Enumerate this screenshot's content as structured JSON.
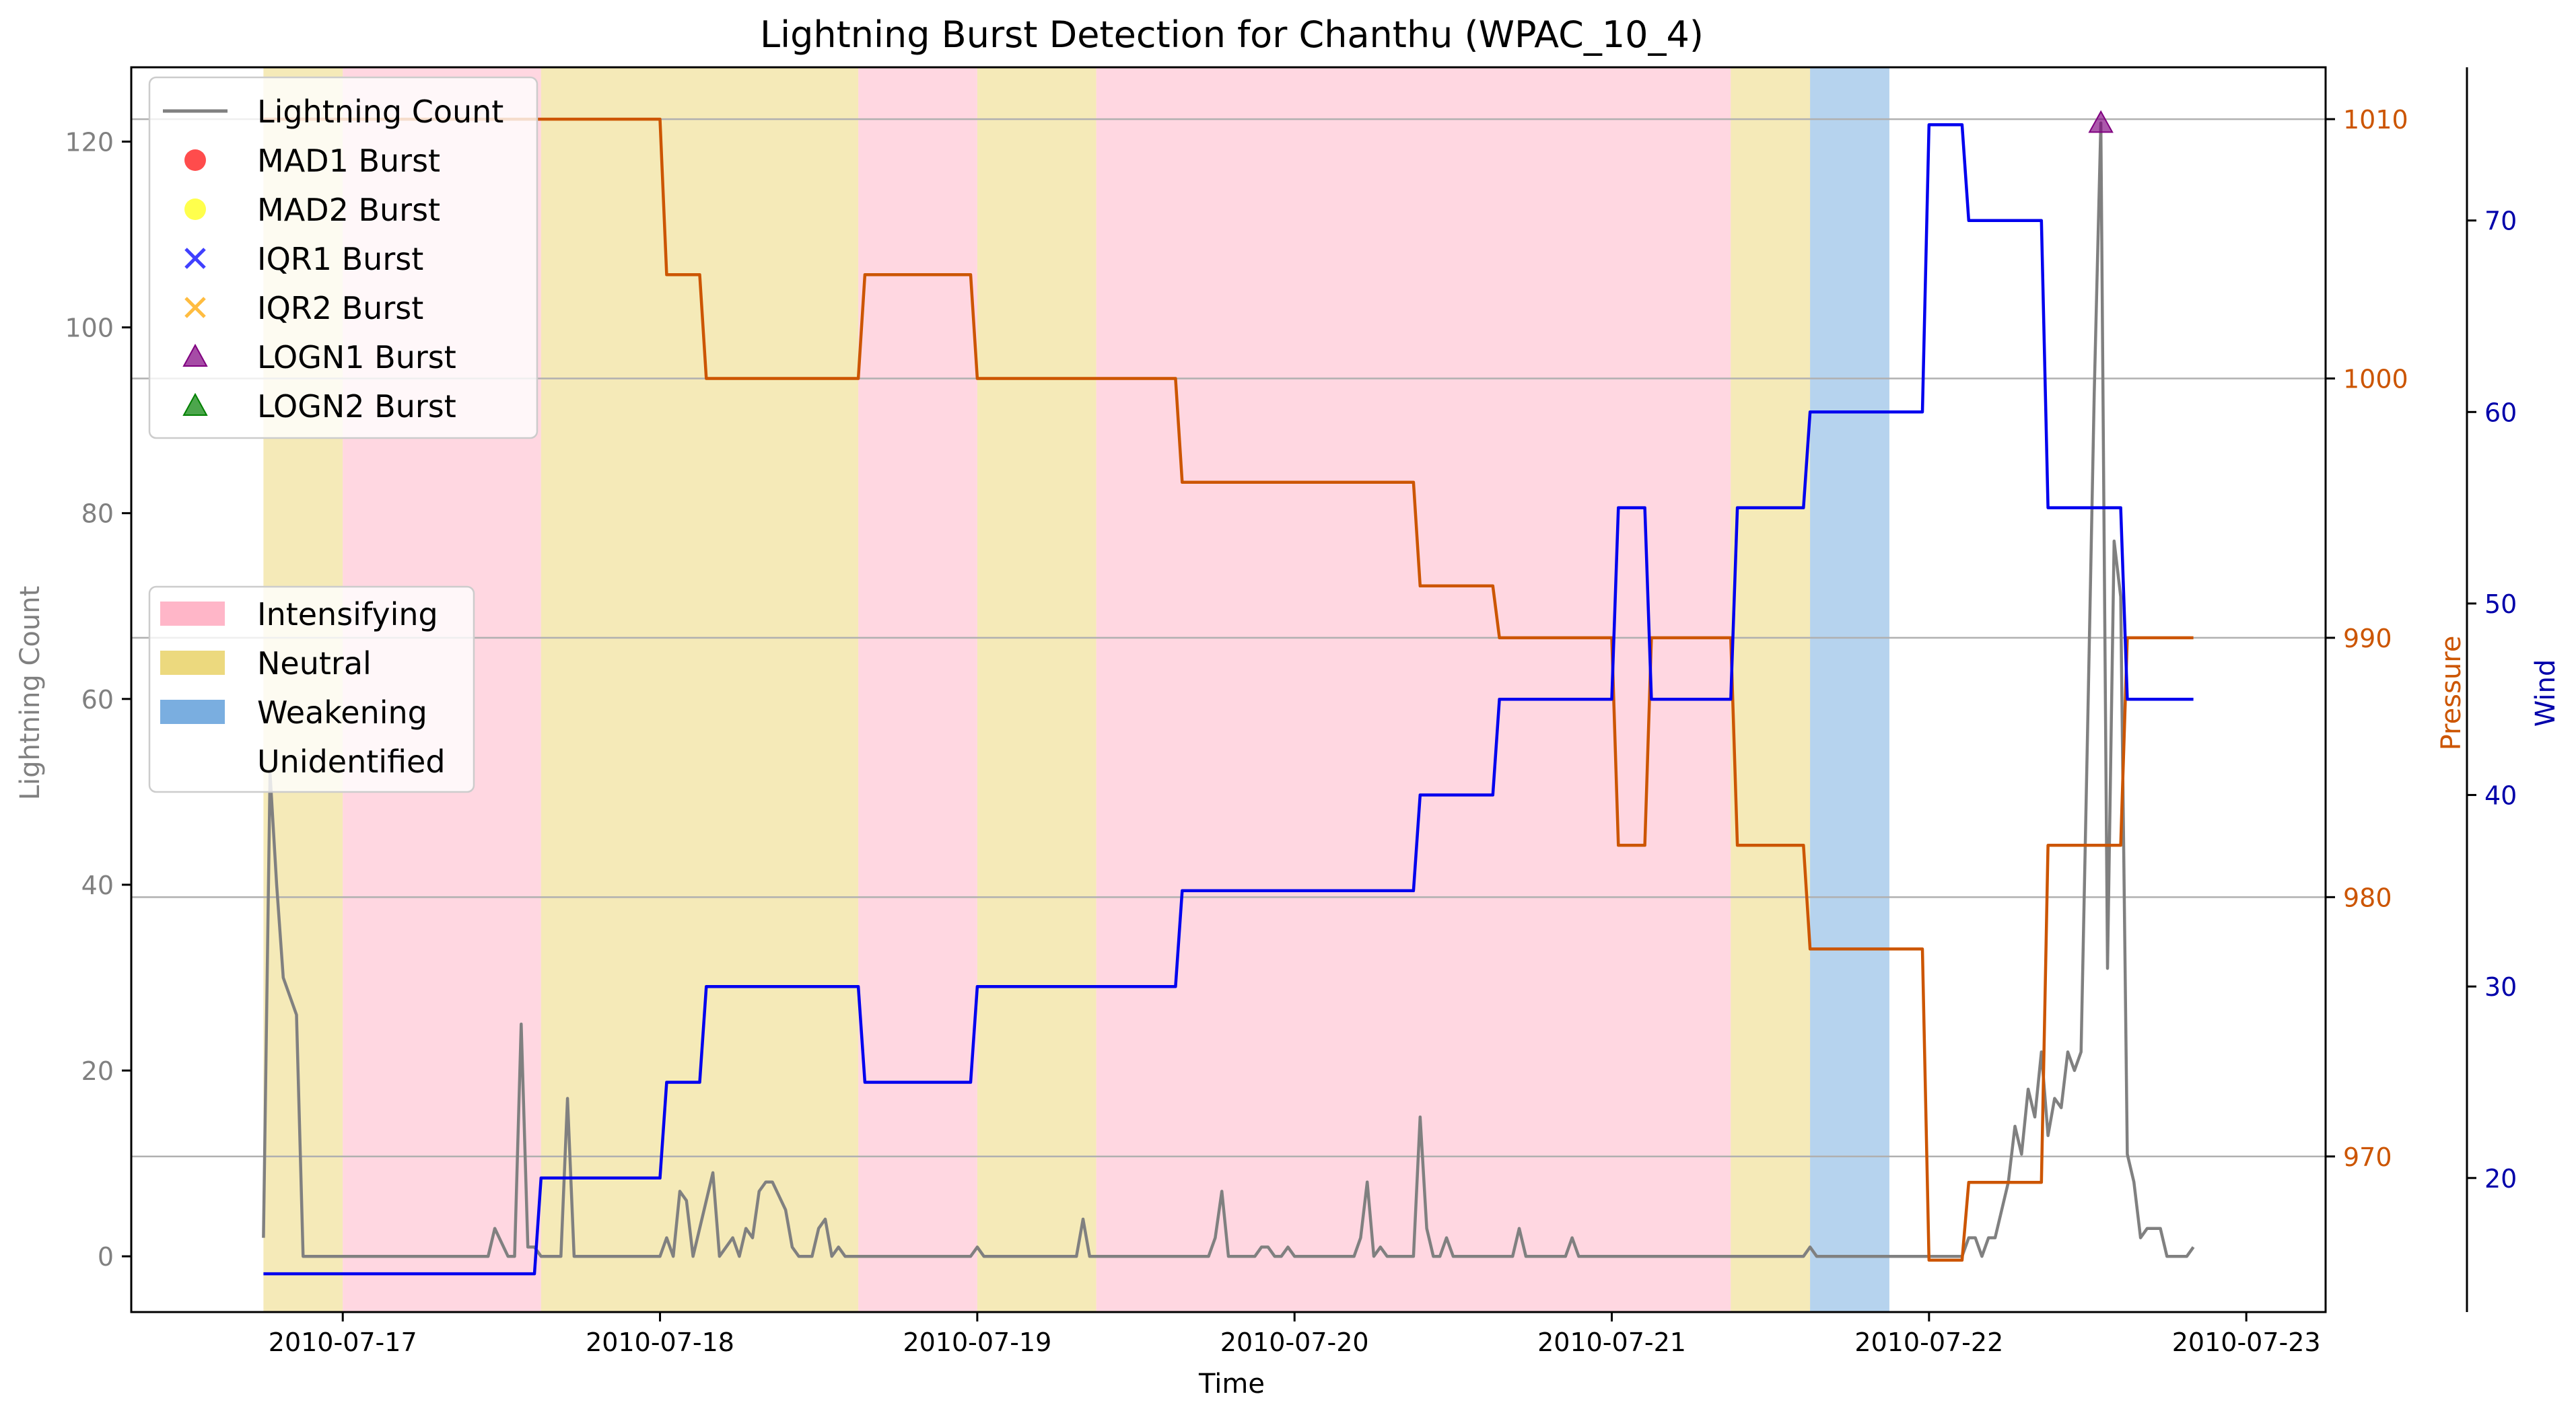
{
  "chart_data": {
    "type": "line",
    "title": "Lightning Burst Detection for Chanthu (WPAC_10_4)",
    "xlabel": "Time",
    "ylabel_left": "Lightning Count",
    "ylabel_pressure": "Pressure",
    "ylabel_wind": "Wind",
    "x_ticks": [
      "2010-07-17",
      "2010-07-18",
      "2010-07-19",
      "2010-07-20",
      "2010-07-21",
      "2010-07-22",
      "2010-07-23"
    ],
    "xlim": [
      "2010-07-16T08:00",
      "2010-07-23T06:00"
    ],
    "ylim_left": [
      -6,
      128
    ],
    "ylim_pressure": [
      964,
      1012
    ],
    "ylim_wind": [
      13,
      78
    ],
    "yticks_left": [
      0,
      20,
      40,
      60,
      80,
      100,
      120
    ],
    "yticks_pressure": [
      970,
      980,
      990,
      1000,
      1010
    ],
    "yticks_wind": [
      20,
      30,
      40,
      50,
      60,
      70
    ],
    "grid": "horizontal",
    "colors": {
      "lightning": "#808080",
      "pressure": "#cc5500",
      "wind": "#0000ee",
      "intensifying": "#ffb6c8",
      "neutral": "#ecd97e",
      "weakening": "#7aaee0",
      "mad1": "#ff0000",
      "mad2": "#ffff00",
      "iqr1": "#0000ff",
      "iqr2": "#ffa500",
      "logn1": "#800080",
      "logn2": "#008000"
    },
    "legend_series": [
      {
        "name": "Lightning Count",
        "marker": "line",
        "color": "#808080"
      },
      {
        "name": "MAD1 Burst",
        "marker": "circle",
        "color": "#ff0000"
      },
      {
        "name": "MAD2 Burst",
        "marker": "circle",
        "color": "#ffff00"
      },
      {
        "name": "IQR1 Burst",
        "marker": "x",
        "color": "#0000ff"
      },
      {
        "name": "IQR2 Burst",
        "marker": "x",
        "color": "#ffa500"
      },
      {
        "name": "LOGN1 Burst",
        "marker": "triangle",
        "color": "#800080"
      },
      {
        "name": "LOGN2 Burst",
        "marker": "triangle",
        "color": "#008000"
      }
    ],
    "legend_phases": [
      {
        "name": "Intensifying",
        "color": "#ffb6c8"
      },
      {
        "name": "Neutral",
        "color": "#ecd97e"
      },
      {
        "name": "Weakening",
        "color": "#7aaee0"
      },
      {
        "name": "Unidentified",
        "color": "none"
      }
    ],
    "phases": [
      {
        "phase": "neutral",
        "start": "2010-07-16T18:00",
        "end": "2010-07-17T00:00"
      },
      {
        "phase": "intensifying",
        "start": "2010-07-17T00:00",
        "end": "2010-07-17T15:00"
      },
      {
        "phase": "neutral",
        "start": "2010-07-17T15:00",
        "end": "2010-07-18T15:00"
      },
      {
        "phase": "intensifying",
        "start": "2010-07-18T15:00",
        "end": "2010-07-19T00:00"
      },
      {
        "phase": "neutral",
        "start": "2010-07-19T00:00",
        "end": "2010-07-19T09:00"
      },
      {
        "phase": "intensifying",
        "start": "2010-07-19T09:00",
        "end": "2010-07-21T09:00"
      },
      {
        "phase": "neutral",
        "start": "2010-07-21T09:00",
        "end": "2010-07-21T15:00"
      },
      {
        "phase": "weakening",
        "start": "2010-07-21T15:00",
        "end": "2010-07-21T21:00"
      }
    ],
    "pressure_series": {
      "name": "Pressure",
      "points": [
        [
          "2010-07-16T18:00",
          1010
        ],
        [
          "2010-07-18T00:00",
          1010
        ],
        [
          "2010-07-18T00:30",
          1004
        ],
        [
          "2010-07-18T03:00",
          1004
        ],
        [
          "2010-07-18T03:30",
          1000
        ],
        [
          "2010-07-18T15:00",
          1000
        ],
        [
          "2010-07-18T15:30",
          1004
        ],
        [
          "2010-07-18T23:30",
          1004
        ],
        [
          "2010-07-19T00:00",
          1000
        ],
        [
          "2010-07-19T15:00",
          1000
        ],
        [
          "2010-07-19T15:30",
          996
        ],
        [
          "2010-07-20T09:00",
          996
        ],
        [
          "2010-07-20T09:30",
          992
        ],
        [
          "2010-07-20T15:00",
          992
        ],
        [
          "2010-07-20T15:30",
          990
        ],
        [
          "2010-07-21T00:00",
          990
        ],
        [
          "2010-07-21T00:30",
          982
        ],
        [
          "2010-07-21T02:30",
          982
        ],
        [
          "2010-07-21T03:00",
          990
        ],
        [
          "2010-07-21T09:00",
          990
        ],
        [
          "2010-07-21T09:30",
          982
        ],
        [
          "2010-07-21T14:30",
          982
        ],
        [
          "2010-07-21T15:00",
          978
        ],
        [
          "2010-07-21T23:30",
          978
        ],
        [
          "2010-07-22T00:00",
          966
        ],
        [
          "2010-07-22T02:30",
          966
        ],
        [
          "2010-07-22T03:00",
          969
        ],
        [
          "2010-07-22T08:30",
          969
        ],
        [
          "2010-07-22T09:00",
          982
        ],
        [
          "2010-07-22T14:30",
          982
        ],
        [
          "2010-07-22T15:00",
          990
        ],
        [
          "2010-07-22T20:00",
          990
        ]
      ]
    },
    "wind_series": {
      "name": "Wind",
      "points": [
        [
          "2010-07-16T18:00",
          15
        ],
        [
          "2010-07-17T14:30",
          15
        ],
        [
          "2010-07-17T15:00",
          20
        ],
        [
          "2010-07-18T00:00",
          20
        ],
        [
          "2010-07-18T00:30",
          25
        ],
        [
          "2010-07-18T03:00",
          25
        ],
        [
          "2010-07-18T03:30",
          30
        ],
        [
          "2010-07-18T15:00",
          30
        ],
        [
          "2010-07-18T15:30",
          25
        ],
        [
          "2010-07-18T23:30",
          25
        ],
        [
          "2010-07-19T00:00",
          30
        ],
        [
          "2010-07-19T15:00",
          30
        ],
        [
          "2010-07-19T15:30",
          35
        ],
        [
          "2010-07-20T09:00",
          35
        ],
        [
          "2010-07-20T09:30",
          40
        ],
        [
          "2010-07-20T15:00",
          40
        ],
        [
          "2010-07-20T15:30",
          45
        ],
        [
          "2010-07-21T00:00",
          45
        ],
        [
          "2010-07-21T00:30",
          55
        ],
        [
          "2010-07-21T02:30",
          55
        ],
        [
          "2010-07-21T03:00",
          45
        ],
        [
          "2010-07-21T09:00",
          45
        ],
        [
          "2010-07-21T09:30",
          55
        ],
        [
          "2010-07-21T14:30",
          55
        ],
        [
          "2010-07-21T15:00",
          60
        ],
        [
          "2010-07-21T23:30",
          60
        ],
        [
          "2010-07-22T00:00",
          75
        ],
        [
          "2010-07-22T02:30",
          75
        ],
        [
          "2010-07-22T03:00",
          70
        ],
        [
          "2010-07-22T08:30",
          70
        ],
        [
          "2010-07-22T09:00",
          55
        ],
        [
          "2010-07-22T14:30",
          55
        ],
        [
          "2010-07-22T15:00",
          45
        ],
        [
          "2010-07-22T20:00",
          45
        ]
      ]
    },
    "lightning_series": {
      "name": "Lightning Count",
      "points": [
        [
          "2010-07-16T18:00",
          2
        ],
        [
          "2010-07-16T18:30",
          52
        ],
        [
          "2010-07-16T19:00",
          40
        ],
        [
          "2010-07-16T19:30",
          30
        ],
        [
          "2010-07-16T20:30",
          26
        ],
        [
          "2010-07-16T21:00",
          0
        ],
        [
          "2010-07-17T11:00",
          0
        ],
        [
          "2010-07-17T11:30",
          3
        ],
        [
          "2010-07-17T12:30",
          0
        ],
        [
          "2010-07-17T13:00",
          0
        ],
        [
          "2010-07-17T13:30",
          25
        ],
        [
          "2010-07-17T14:00",
          1
        ],
        [
          "2010-07-17T14:30",
          1
        ],
        [
          "2010-07-17T15:00",
          0
        ],
        [
          "2010-07-17T16:30",
          0
        ],
        [
          "2010-07-17T17:00",
          17
        ],
        [
          "2010-07-17T17:30",
          0
        ],
        [
          "2010-07-18T00:00",
          0
        ],
        [
          "2010-07-18T00:30",
          2
        ],
        [
          "2010-07-18T01:00",
          0
        ],
        [
          "2010-07-18T01:30",
          7
        ],
        [
          "2010-07-18T02:00",
          6
        ],
        [
          "2010-07-18T02:30",
          0
        ],
        [
          "2010-07-18T03:30",
          6
        ],
        [
          "2010-07-18T04:00",
          9
        ],
        [
          "2010-07-18T04:30",
          0
        ],
        [
          "2010-07-18T05:30",
          2
        ],
        [
          "2010-07-18T06:00",
          0
        ],
        [
          "2010-07-18T06:30",
          3
        ],
        [
          "2010-07-18T07:00",
          2
        ],
        [
          "2010-07-18T07:30",
          7
        ],
        [
          "2010-07-18T08:00",
          8
        ],
        [
          "2010-07-18T08:30",
          8
        ],
        [
          "2010-07-18T09:30",
          5
        ],
        [
          "2010-07-18T10:00",
          1
        ],
        [
          "2010-07-18T10:30",
          0
        ],
        [
          "2010-07-18T11:30",
          0
        ],
        [
          "2010-07-18T12:00",
          3
        ],
        [
          "2010-07-18T12:30",
          4
        ],
        [
          "2010-07-18T13:00",
          0
        ],
        [
          "2010-07-18T13:30",
          1
        ],
        [
          "2010-07-18T14:00",
          0
        ],
        [
          "2010-07-18T23:30",
          0
        ],
        [
          "2010-07-19T00:00",
          1
        ],
        [
          "2010-07-19T00:30",
          0
        ],
        [
          "2010-07-19T07:30",
          0
        ],
        [
          "2010-07-19T08:00",
          4
        ],
        [
          "2010-07-19T08:30",
          0
        ],
        [
          "2010-07-19T17:30",
          0
        ],
        [
          "2010-07-19T18:00",
          2
        ],
        [
          "2010-07-19T18:30",
          7
        ],
        [
          "2010-07-19T19:00",
          0
        ],
        [
          "2010-07-19T21:00",
          0
        ],
        [
          "2010-07-19T21:30",
          1
        ],
        [
          "2010-07-19T22:00",
          1
        ],
        [
          "2010-07-19T22:30",
          0
        ],
        [
          "2010-07-19T23:00",
          0
        ],
        [
          "2010-07-19T23:30",
          1
        ],
        [
          "2010-07-20T00:00",
          0
        ],
        [
          "2010-07-20T04:30",
          0
        ],
        [
          "2010-07-20T05:00",
          2
        ],
        [
          "2010-07-20T05:30",
          8
        ],
        [
          "2010-07-20T06:00",
          0
        ],
        [
          "2010-07-20T06:30",
          1
        ],
        [
          "2010-07-20T07:00",
          0
        ],
        [
          "2010-07-20T09:00",
          0
        ],
        [
          "2010-07-20T09:30",
          15
        ],
        [
          "2010-07-20T10:00",
          3
        ],
        [
          "2010-07-20T10:30",
          0
        ],
        [
          "2010-07-20T11:00",
          0
        ],
        [
          "2010-07-20T11:30",
          2
        ],
        [
          "2010-07-20T12:00",
          0
        ],
        [
          "2010-07-20T16:30",
          0
        ],
        [
          "2010-07-20T17:00",
          3
        ],
        [
          "2010-07-20T17:30",
          0
        ],
        [
          "2010-07-20T20:30",
          0
        ],
        [
          "2010-07-20T21:00",
          2
        ],
        [
          "2010-07-20T21:30",
          0
        ],
        [
          "2010-07-21T14:30",
          0
        ],
        [
          "2010-07-21T15:00",
          1
        ],
        [
          "2010-07-21T15:30",
          0
        ],
        [
          "2010-07-22T02:30",
          0
        ],
        [
          "2010-07-22T03:00",
          2
        ],
        [
          "2010-07-22T03:30",
          2
        ],
        [
          "2010-07-22T04:00",
          0
        ],
        [
          "2010-07-22T04:30",
          2
        ],
        [
          "2010-07-22T05:00",
          2
        ],
        [
          "2010-07-22T06:00",
          8
        ],
        [
          "2010-07-22T06:30",
          14
        ],
        [
          "2010-07-22T07:00",
          11
        ],
        [
          "2010-07-22T07:30",
          18
        ],
        [
          "2010-07-22T08:00",
          15
        ],
        [
          "2010-07-22T08:30",
          22
        ],
        [
          "2010-07-22T09:00",
          13
        ],
        [
          "2010-07-22T09:30",
          17
        ],
        [
          "2010-07-22T10:00",
          16
        ],
        [
          "2010-07-22T10:30",
          22
        ],
        [
          "2010-07-22T11:00",
          20
        ],
        [
          "2010-07-22T11:30",
          22
        ],
        [
          "2010-07-22T12:00",
          57
        ],
        [
          "2010-07-22T12:30",
          93
        ],
        [
          "2010-07-22T13:00",
          122
        ],
        [
          "2010-07-22T13:30",
          31
        ],
        [
          "2010-07-22T14:00",
          77
        ],
        [
          "2010-07-22T14:30",
          71
        ],
        [
          "2010-07-22T15:00",
          11
        ],
        [
          "2010-07-22T15:30",
          8
        ],
        [
          "2010-07-22T16:00",
          2
        ],
        [
          "2010-07-22T16:30",
          3
        ],
        [
          "2010-07-22T17:30",
          3
        ],
        [
          "2010-07-22T18:00",
          0
        ],
        [
          "2010-07-22T19:30",
          0
        ],
        [
          "2010-07-22T20:00",
          1
        ]
      ]
    },
    "bursts": [
      {
        "type": "LOGN1 Burst",
        "x": "2010-07-22T13:00",
        "y": 122
      }
    ]
  }
}
